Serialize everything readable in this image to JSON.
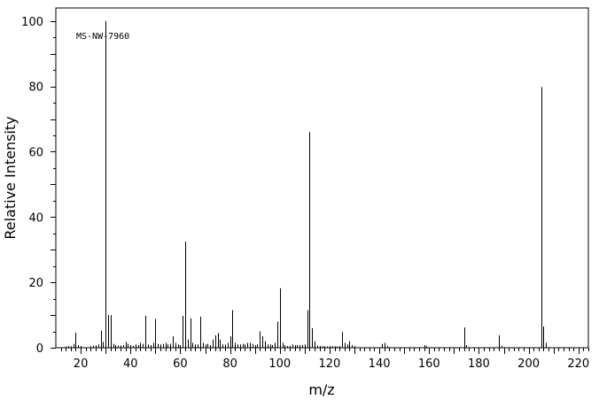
{
  "chart_data": {
    "type": "bar",
    "title": "",
    "annotation": "MS-NW-7960",
    "xlabel": "m/z",
    "ylabel": "Relative Intensity",
    "xlim": [
      10,
      224
    ],
    "ylim": [
      0,
      104
    ],
    "xticks": [
      20,
      40,
      60,
      80,
      100,
      120,
      140,
      160,
      180,
      200,
      220
    ],
    "yticks": [
      0,
      20,
      40,
      60,
      80,
      100
    ],
    "grid": false,
    "series": [
      {
        "x": [
          14,
          15,
          16,
          17,
          18,
          19,
          20,
          24,
          25,
          26,
          27,
          28,
          29,
          30,
          31,
          32,
          33,
          34,
          35,
          36,
          37,
          38,
          39,
          40,
          41,
          42,
          43,
          44,
          45,
          46,
          47,
          48,
          49,
          50,
          51,
          52,
          53,
          54,
          55,
          56,
          57,
          58,
          59,
          60,
          61,
          62,
          63,
          64,
          65,
          66,
          67,
          68,
          69,
          70,
          71,
          72,
          73,
          74,
          75,
          76,
          77,
          78,
          79,
          80,
          81,
          82,
          83,
          84,
          85,
          86,
          87,
          88,
          89,
          90,
          91,
          92,
          93,
          94,
          95,
          96,
          97,
          98,
          99,
          100,
          101,
          102,
          103,
          104,
          105,
          106,
          107,
          108,
          109,
          110,
          111,
          112,
          113,
          114,
          115,
          116,
          117,
          118,
          119,
          120,
          121,
          122,
          123,
          124,
          125,
          126,
          127,
          128,
          129,
          130,
          141,
          142,
          143,
          158,
          159,
          174,
          175,
          188,
          189,
          205,
          206,
          207
        ],
        "values": [
          0.3,
          0.5,
          0.4,
          1.2,
          4.6,
          0.8,
          0.5,
          0.4,
          0.6,
          0.7,
          1.0,
          5.2,
          1.8,
          100,
          10,
          10,
          1.2,
          0.8,
          0.6,
          0.7,
          0.8,
          1.8,
          1.2,
          0.8,
          0.5,
          1.0,
          0.8,
          1.5,
          1.2,
          9.8,
          1.0,
          0.8,
          1.5,
          8.8,
          1.2,
          1.0,
          1.2,
          1.5,
          1.0,
          1.2,
          3.5,
          1.5,
          1.0,
          0.8,
          9.8,
          32.5,
          2.5,
          9.0,
          1.5,
          1.0,
          1.0,
          9.5,
          1.5,
          1.0,
          1.2,
          0.8,
          2.5,
          3.8,
          4.5,
          2.5,
          1.0,
          1.0,
          1.5,
          3.5,
          11.5,
          1.5,
          1.0,
          1.0,
          1.2,
          1.0,
          1.5,
          1.5,
          1.2,
          0.8,
          1.0,
          5.0,
          3.5,
          2.0,
          1.0,
          1.0,
          0.8,
          1.5,
          8.0,
          18.2,
          1.5,
          0.8,
          0.5,
          0.5,
          1.0,
          0.8,
          0.8,
          0.8,
          0.8,
          1.0,
          11.5,
          66,
          6.0,
          2.0,
          0.6,
          0.5,
          0.5,
          0.4,
          0.4,
          0.5,
          0.5,
          0.4,
          0.4,
          0.5,
          4.8,
          1.5,
          1.0,
          2.0,
          0.8,
          0.5,
          1.2,
          1.5,
          0.5,
          0.8,
          0.5,
          6.2,
          0.8,
          3.8,
          0.5,
          79.8,
          6.5,
          1.5
        ]
      }
    ]
  }
}
